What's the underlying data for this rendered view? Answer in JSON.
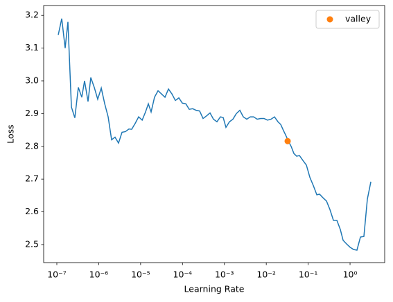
{
  "chart_data": {
    "type": "line",
    "xlabel": "Learning Rate",
    "ylabel": "Loss",
    "xscale": "log",
    "xlim": [
      4.85e-08,
      6.71
    ],
    "ylim": [
      2.445,
      3.23
    ],
    "xticks": [
      {
        "value": 1e-07,
        "label": "10⁻⁷"
      },
      {
        "value": 1e-06,
        "label": "10⁻⁶"
      },
      {
        "value": 1e-05,
        "label": "10⁻⁵"
      },
      {
        "value": 0.0001,
        "label": "10⁻⁴"
      },
      {
        "value": 0.001,
        "label": "10⁻³"
      },
      {
        "value": 0.01,
        "label": "10⁻²"
      },
      {
        "value": 0.1,
        "label": "10⁻¹"
      },
      {
        "value": 1,
        "label": "10⁰"
      }
    ],
    "yticks": [
      2.5,
      2.6,
      2.7,
      2.8,
      2.9,
      {
        "value": 3,
        "label": "3.0"
      },
      3.1,
      3.2
    ],
    "grid": false,
    "legend": "upper right",
    "series": [
      {
        "color": "#1f77b4",
        "x": [
          1.08e-07,
          1.31e-07,
          1.58e-07,
          1.84e-07,
          2.23e-07,
          2.69e-07,
          3.26e-07,
          3.94e-07,
          4.59e-07,
          5.56e-07,
          6.47e-07,
          7.83e-07,
          9.46e-07,
          1.15e-06,
          1.39e-06,
          1.68e-06,
          2.03e-06,
          2.45e-06,
          2.97e-06,
          3.6e-06,
          4.35e-06,
          5.26e-06,
          6.12e-06,
          7.41e-06,
          8.97e-06,
          1.09e-05,
          1.31e-05,
          1.53e-05,
          1.78e-05,
          2.15e-05,
          2.61e-05,
          3.15e-05,
          3.82e-05,
          4.62e-05,
          5.59e-05,
          6.76e-05,
          8.18e-05,
          9.89e-05,
          0.00012,
          0.000145,
          0.000175,
          0.000212,
          0.000256,
          0.00031,
          0.000375,
          0.000454,
          0.000549,
          0.000665,
          0.000805,
          0.000937,
          0.00109,
          0.00132,
          0.0016,
          0.00193,
          0.00234,
          0.00283,
          0.00342,
          0.00414,
          0.00501,
          0.00606,
          0.00733,
          0.00887,
          0.0107,
          0.013,
          0.0157,
          0.019,
          0.0221,
          0.0258,
          0.0289,
          0.0337,
          0.0392,
          0.0457,
          0.0532,
          0.0619,
          0.075,
          0.0906,
          0.11,
          0.133,
          0.161,
          0.187,
          0.226,
          0.274,
          0.331,
          0.401,
          0.485,
          0.586,
          0.683,
          0.826,
          1.0,
          1.21,
          1.46,
          1.77,
          2.14,
          2.59,
          3.14
        ],
        "values": [
          3.14,
          3.19,
          3.1,
          3.18,
          2.92,
          2.887,
          2.98,
          2.95,
          3.0,
          2.937,
          3.01,
          2.98,
          2.944,
          2.978,
          2.93,
          2.89,
          2.82,
          2.828,
          2.81,
          2.843,
          2.845,
          2.853,
          2.852,
          2.87,
          2.89,
          2.88,
          2.905,
          2.93,
          2.905,
          2.95,
          2.97,
          2.96,
          2.95,
          2.975,
          2.96,
          2.94,
          2.948,
          2.932,
          2.93,
          2.913,
          2.915,
          2.91,
          2.908,
          2.885,
          2.893,
          2.902,
          2.883,
          2.875,
          2.89,
          2.888,
          2.858,
          2.875,
          2.883,
          2.9,
          2.91,
          2.89,
          2.883,
          2.89,
          2.89,
          2.883,
          2.885,
          2.885,
          2.88,
          2.883,
          2.89,
          2.875,
          2.867,
          2.848,
          2.835,
          2.816,
          2.8,
          2.778,
          2.77,
          2.772,
          2.757,
          2.743,
          2.705,
          2.68,
          2.652,
          2.654,
          2.643,
          2.633,
          2.607,
          2.574,
          2.574,
          2.546,
          2.513,
          2.502,
          2.492,
          2.485,
          2.483,
          2.523,
          2.525,
          2.639,
          2.692
        ]
      },
      {
        "name": "valley",
        "type": "scatter",
        "color": "#ff7f0e",
        "x": [
          0.0324
        ],
        "values": [
          2.816
        ]
      }
    ]
  }
}
